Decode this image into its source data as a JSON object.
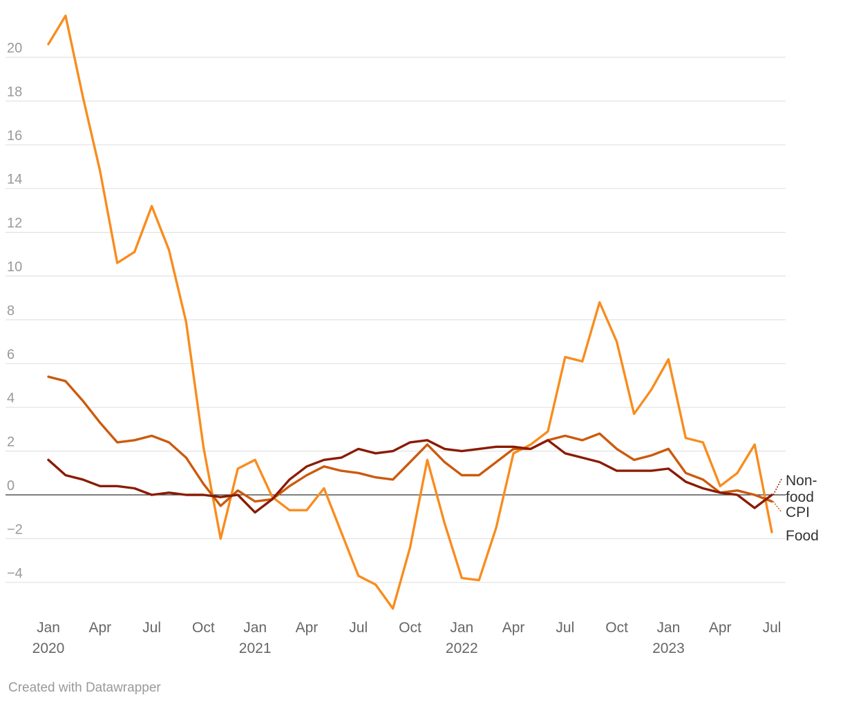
{
  "chart_data": {
    "type": "line",
    "title": "",
    "xlabel": "",
    "ylabel": "",
    "ylim": [
      -5.4,
      22
    ],
    "yticks": [
      -4,
      -2,
      0,
      2,
      4,
      6,
      8,
      10,
      12,
      14,
      16,
      18,
      20
    ],
    "grid": true,
    "legend": "direct labels at line ends (right)",
    "x": [
      "2020-01",
      "2020-02",
      "2020-03",
      "2020-04",
      "2020-05",
      "2020-06",
      "2020-07",
      "2020-08",
      "2020-09",
      "2020-10",
      "2020-11",
      "2020-12",
      "2021-01",
      "2021-02",
      "2021-03",
      "2021-04",
      "2021-05",
      "2021-06",
      "2021-07",
      "2021-08",
      "2021-09",
      "2021-10",
      "2021-11",
      "2021-12",
      "2022-01",
      "2022-02",
      "2022-03",
      "2022-04",
      "2022-05",
      "2022-06",
      "2022-07",
      "2022-08",
      "2022-09",
      "2022-10",
      "2022-11",
      "2022-12",
      "2023-01",
      "2023-02",
      "2023-03",
      "2023-04",
      "2023-05",
      "2023-06",
      "2023-07"
    ],
    "x_tick_labels": [
      {
        "month": "Jan",
        "year": "2020"
      },
      {
        "month": "Apr",
        "year": ""
      },
      {
        "month": "Jul",
        "year": ""
      },
      {
        "month": "Oct",
        "year": ""
      },
      {
        "month": "Jan",
        "year": "2021"
      },
      {
        "month": "Apr",
        "year": ""
      },
      {
        "month": "Jul",
        "year": ""
      },
      {
        "month": "Oct",
        "year": ""
      },
      {
        "month": "Jan",
        "year": "2022"
      },
      {
        "month": "Apr",
        "year": ""
      },
      {
        "month": "Jul",
        "year": ""
      },
      {
        "month": "Oct",
        "year": ""
      },
      {
        "month": "Jan",
        "year": "2023"
      },
      {
        "month": "Apr",
        "year": ""
      },
      {
        "month": "Jul",
        "year": ""
      }
    ],
    "series": [
      {
        "name": "Food",
        "color": "#f98c1e",
        "values": [
          20.6,
          21.9,
          18.2,
          14.8,
          10.6,
          11.1,
          13.2,
          11.2,
          7.9,
          2.2,
          -2.0,
          1.2,
          1.6,
          -0.1,
          -0.7,
          -0.7,
          0.3,
          -1.7,
          -3.7,
          -4.1,
          -5.2,
          -2.4,
          1.6,
          -1.3,
          -3.8,
          -3.9,
          -1.5,
          1.9,
          2.3,
          2.9,
          6.3,
          6.1,
          8.8,
          7.0,
          3.7,
          4.8,
          6.2,
          2.6,
          2.4,
          0.4,
          1.0,
          2.3,
          -1.7
        ]
      },
      {
        "name": "CPI",
        "color": "#cc5a0d",
        "values": [
          5.4,
          5.2,
          4.3,
          3.3,
          2.4,
          2.5,
          2.7,
          2.4,
          1.7,
          0.5,
          -0.5,
          0.2,
          -0.3,
          -0.2,
          0.4,
          0.9,
          1.3,
          1.1,
          1.0,
          0.8,
          0.7,
          1.5,
          2.3,
          1.5,
          0.9,
          0.9,
          1.5,
          2.1,
          2.1,
          2.5,
          2.7,
          2.5,
          2.8,
          2.1,
          1.6,
          1.8,
          2.1,
          1.0,
          0.7,
          0.1,
          0.2,
          0.0,
          -0.3
        ]
      },
      {
        "name": "Non-food",
        "color": "#8a1b03",
        "values": [
          1.6,
          0.9,
          0.7,
          0.4,
          0.4,
          0.3,
          0.0,
          0.1,
          0.0,
          0.0,
          -0.1,
          0.0,
          -0.8,
          -0.2,
          0.7,
          1.3,
          1.6,
          1.7,
          2.1,
          1.9,
          2.0,
          2.4,
          2.5,
          2.1,
          2.0,
          2.1,
          2.2,
          2.2,
          2.1,
          2.5,
          1.9,
          1.7,
          1.5,
          1.1,
          1.1,
          1.1,
          1.2,
          0.6,
          0.3,
          0.1,
          0.0,
          -0.6,
          0.0
        ]
      }
    ],
    "end_labels": [
      {
        "series": "Non-food",
        "lines": [
          "Non-",
          "food"
        ]
      },
      {
        "series": "CPI",
        "lines": [
          "CPI"
        ]
      },
      {
        "series": "Food",
        "lines": [
          "Food"
        ]
      }
    ]
  },
  "footer": {
    "credit": "Created with Datawrapper"
  }
}
